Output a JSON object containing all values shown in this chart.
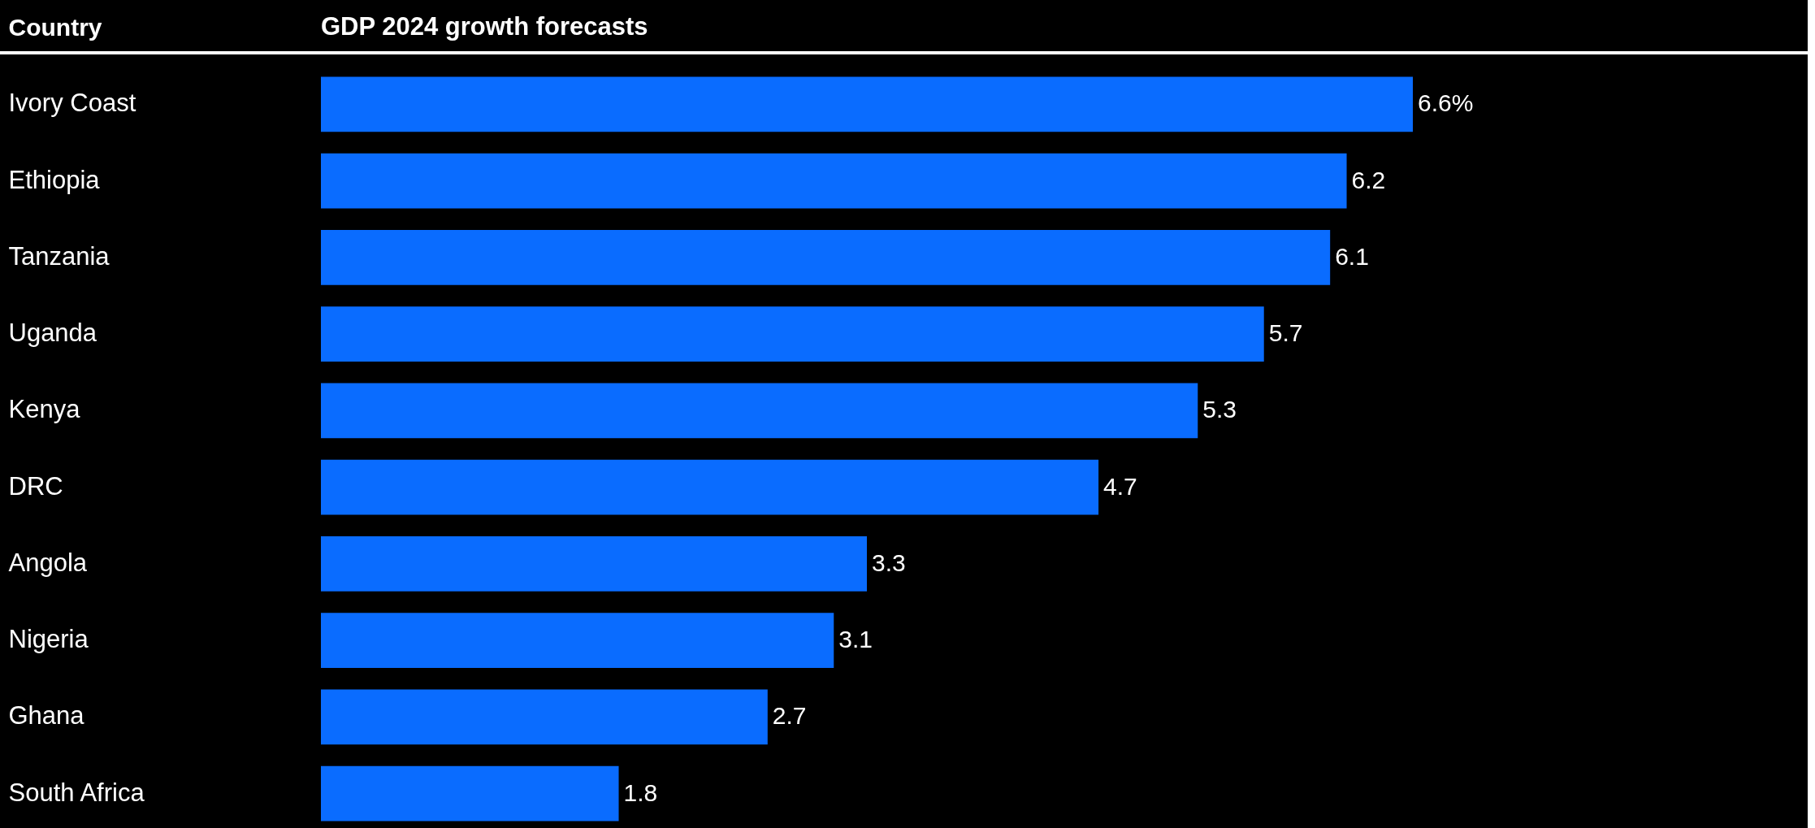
{
  "chart_data": {
    "type": "bar",
    "orientation": "horizontal",
    "title": "GDP 2024 growth forecasts",
    "ylabel": "Country",
    "categories": [
      "Ivory Coast",
      "Ethiopia",
      "Tanzania",
      "Uganda",
      "Kenya",
      "DRC",
      "Angola",
      "Nigeria",
      "Ghana",
      "South Africa"
    ],
    "values": [
      6.6,
      6.2,
      6.1,
      5.7,
      5.3,
      4.7,
      3.3,
      3.1,
      2.7,
      1.8
    ],
    "value_labels": [
      "6.6%",
      "6.2",
      "6.1",
      "5.7",
      "5.3",
      "4.7",
      "3.3",
      "3.1",
      "2.7",
      "1.8"
    ],
    "color": "#0a6cff",
    "grid": false
  }
}
